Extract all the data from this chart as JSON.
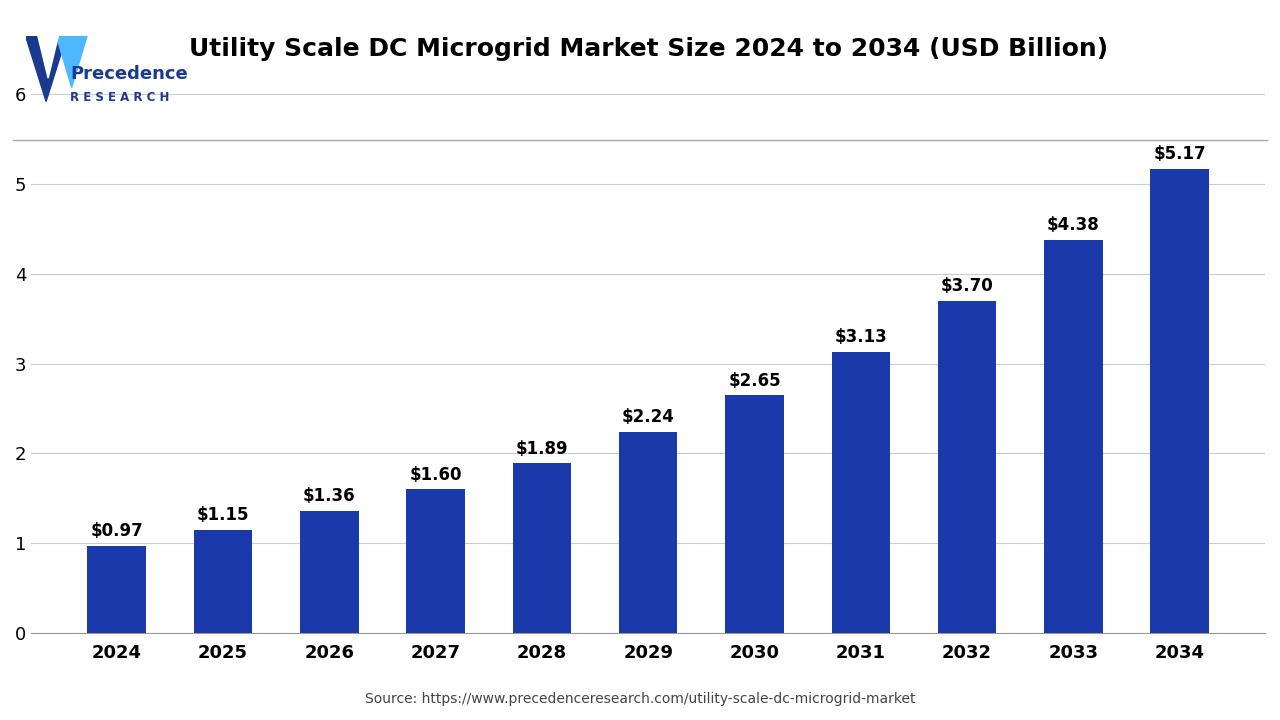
{
  "title": "Utility Scale DC Microgrid Market Size 2024 to 2034 (USD Billion)",
  "years": [
    "2024",
    "2025",
    "2026",
    "2027",
    "2028",
    "2029",
    "2030",
    "2031",
    "2032",
    "2033",
    "2034"
  ],
  "values": [
    0.97,
    1.15,
    1.36,
    1.6,
    1.89,
    2.24,
    2.65,
    3.13,
    3.7,
    4.38,
    5.17
  ],
  "labels": [
    "$0.97",
    "$1.15",
    "$1.36",
    "$1.60",
    "$1.89",
    "$2.24",
    "$2.65",
    "$3.13",
    "$3.70",
    "$4.38",
    "$5.17"
  ],
  "bar_color": "#1a3aab",
  "background_color": "#ffffff",
  "ylim": [
    0,
    6.2
  ],
  "yticks": [
    0,
    1,
    2,
    3,
    4,
    5,
    6
  ],
  "title_fontsize": 18,
  "tick_fontsize": 13,
  "label_fontsize": 12,
  "source_text": "Source: https://www.precedenceresearch.com/utility-scale-dc-microgrid-market",
  "logo_text_line1": "Precedence",
  "logo_text_line2": "R E S E A R C H",
  "grid_color": "#cccccc",
  "logo_color": "#1a3a8f",
  "logo_light_color": "#4db8ff"
}
